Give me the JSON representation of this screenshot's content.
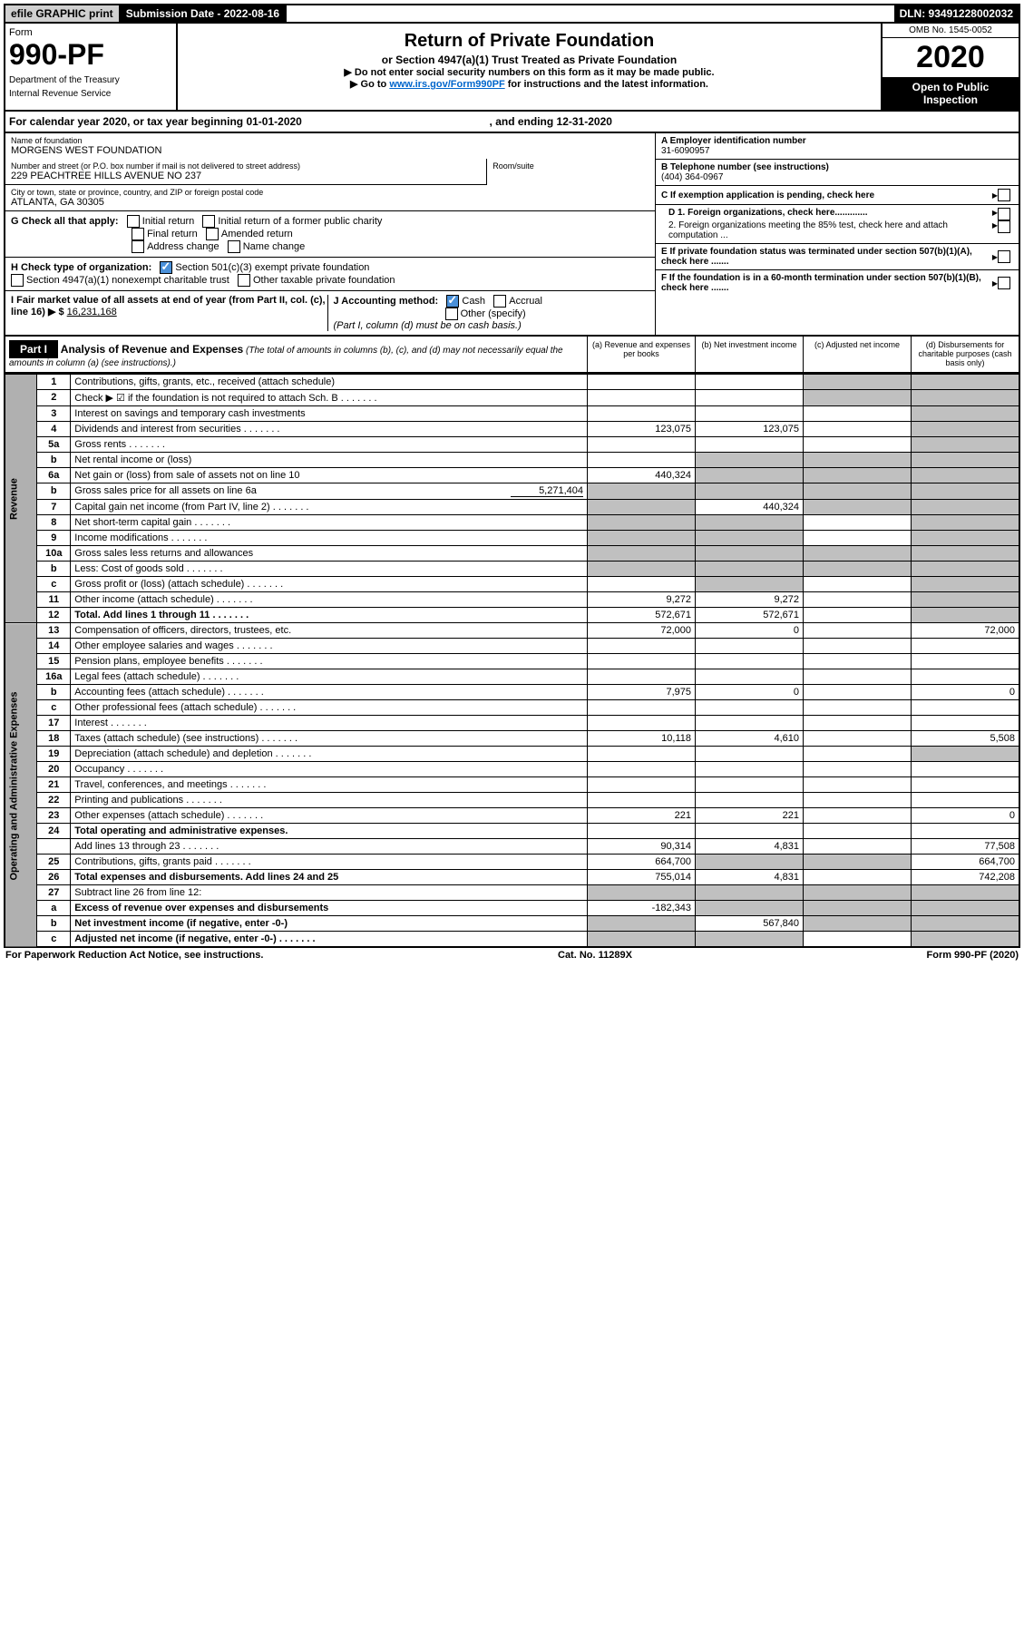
{
  "header": {
    "efile": "efile GRAPHIC print",
    "submission": "Submission Date - 2022-08-16",
    "dln": "DLN: 93491228002032"
  },
  "form": {
    "form_word": "Form",
    "number": "990-PF",
    "dept1": "Department of the Treasury",
    "dept2": "Internal Revenue Service",
    "title": "Return of Private Foundation",
    "subtitle": "or Section 4947(a)(1) Trust Treated as Private Foundation",
    "instr1": "▶ Do not enter social security numbers on this form as it may be made public.",
    "instr2_pre": "▶ Go to ",
    "instr2_link": "www.irs.gov/Form990PF",
    "instr2_post": " for instructions and the latest information.",
    "omb": "OMB No. 1545-0052",
    "year": "2020",
    "inspect": "Open to Public Inspection"
  },
  "calendar": {
    "text_pre": "For calendar year 2020, or tax year beginning ",
    "begin": "01-01-2020",
    "text_mid": " , and ending ",
    "end": "12-31-2020"
  },
  "entity": {
    "name_label": "Name of foundation",
    "name": "MORGENS WEST FOUNDATION",
    "street_label": "Number and street (or P.O. box number if mail is not delivered to street address)",
    "street": "229 PEACHTREE HILLS AVENUE NO 237",
    "room_label": "Room/suite",
    "city_label": "City or town, state or province, country, and ZIP or foreign postal code",
    "city": "ATLANTA, GA  30305",
    "ein_label": "A Employer identification number",
    "ein": "31-6090957",
    "phone_label": "B Telephone number (see instructions)",
    "phone": "(404) 364-0967",
    "c_label": "C If exemption application is pending, check here",
    "d1": "D 1. Foreign organizations, check here.............",
    "d2": "2. Foreign organizations meeting the 85% test, check here and attach computation ...",
    "e_label": "E  If private foundation status was terminated under section 507(b)(1)(A), check here .......",
    "f_label": "F  If the foundation is in a 60-month termination under section 507(b)(1)(B), check here .......",
    "g_label": "G Check all that apply:",
    "g_initial": "Initial return",
    "g_initial_former": "Initial return of a former public charity",
    "g_final": "Final return",
    "g_amended": "Amended return",
    "g_address": "Address change",
    "g_name": "Name change",
    "h_label": "H Check type of organization:",
    "h_501c3": "Section 501(c)(3) exempt private foundation",
    "h_4947": "Section 4947(a)(1) nonexempt charitable trust",
    "h_other": "Other taxable private foundation",
    "i_label": "I Fair market value of all assets at end of year (from Part II, col. (c), line 16) ▶ $",
    "i_value": "16,231,168",
    "j_label": "J Accounting method:",
    "j_cash": "Cash",
    "j_accrual": "Accrual",
    "j_other": "Other (specify)",
    "j_note": "(Part I, column (d) must be on cash basis.)"
  },
  "part1": {
    "label": "Part I",
    "title": "Analysis of Revenue and Expenses",
    "title_note": "(The total of amounts in columns (b), (c), and (d) may not necessarily equal the amounts in column (a) (see instructions).)",
    "col_a": "(a)   Revenue and expenses per books",
    "col_b": "(b)   Net investment income",
    "col_c": "(c)   Adjusted net income",
    "col_d": "(d)   Disbursements for charitable purposes (cash basis only)"
  },
  "sections": {
    "revenue": "Revenue",
    "expenses": "Operating and Administrative Expenses"
  },
  "rows": [
    {
      "n": "1",
      "d": "Contributions, gifts, grants, etc., received (attach schedule)",
      "a": "",
      "b": "",
      "c": "s",
      "dd": "s"
    },
    {
      "n": "2",
      "d": "Check ▶ ☑ if the foundation is not required to attach Sch. B",
      "a": "",
      "b": "",
      "c": "s",
      "dd": "s",
      "dots": true
    },
    {
      "n": "3",
      "d": "Interest on savings and temporary cash investments",
      "a": "",
      "b": "",
      "c": "",
      "dd": "s"
    },
    {
      "n": "4",
      "d": "Dividends and interest from securities",
      "a": "123,075",
      "b": "123,075",
      "c": "",
      "dd": "s",
      "dots": true
    },
    {
      "n": "5a",
      "d": "Gross rents",
      "a": "",
      "b": "",
      "c": "",
      "dd": "s",
      "dots": true
    },
    {
      "n": "b",
      "d": "Net rental income or (loss)",
      "a": "",
      "b": "s",
      "c": "s",
      "dd": "s",
      "under": true
    },
    {
      "n": "6a",
      "d": "Net gain or (loss) from sale of assets not on line 10",
      "a": "440,324",
      "b": "s",
      "c": "s",
      "dd": "s"
    },
    {
      "n": "b",
      "d": "Gross sales price for all assets on line 6a",
      "a": "s",
      "b": "s",
      "c": "s",
      "dd": "s",
      "inline": "5,271,404"
    },
    {
      "n": "7",
      "d": "Capital gain net income (from Part IV, line 2)",
      "a": "s",
      "b": "440,324",
      "c": "s",
      "dd": "s",
      "dots": true
    },
    {
      "n": "8",
      "d": "Net short-term capital gain",
      "a": "s",
      "b": "s",
      "c": "",
      "dd": "s",
      "dots": true
    },
    {
      "n": "9",
      "d": "Income modifications",
      "a": "s",
      "b": "s",
      "c": "",
      "dd": "s",
      "dots": true
    },
    {
      "n": "10a",
      "d": "Gross sales less returns and allowances",
      "a": "s",
      "b": "s",
      "c": "s",
      "dd": "s",
      "under": true
    },
    {
      "n": "b",
      "d": "Less: Cost of goods sold",
      "a": "s",
      "b": "s",
      "c": "s",
      "dd": "s",
      "under": true,
      "dots": true
    },
    {
      "n": "c",
      "d": "Gross profit or (loss) (attach schedule)",
      "a": "",
      "b": "s",
      "c": "",
      "dd": "s",
      "dots": true
    },
    {
      "n": "11",
      "d": "Other income (attach schedule)",
      "a": "9,272",
      "b": "9,272",
      "c": "",
      "dd": "s",
      "dots": true
    },
    {
      "n": "12",
      "d": "Total. Add lines 1 through 11",
      "a": "572,671",
      "b": "572,671",
      "c": "",
      "dd": "s",
      "bold": true,
      "dots": true
    }
  ],
  "exp_rows": [
    {
      "n": "13",
      "d": "Compensation of officers, directors, trustees, etc.",
      "a": "72,000",
      "b": "0",
      "c": "",
      "dd": "72,000"
    },
    {
      "n": "14",
      "d": "Other employee salaries and wages",
      "a": "",
      "b": "",
      "c": "",
      "dd": "",
      "dots": true
    },
    {
      "n": "15",
      "d": "Pension plans, employee benefits",
      "a": "",
      "b": "",
      "c": "",
      "dd": "",
      "dots": true
    },
    {
      "n": "16a",
      "d": "Legal fees (attach schedule)",
      "a": "",
      "b": "",
      "c": "",
      "dd": "",
      "dots": true
    },
    {
      "n": "b",
      "d": "Accounting fees (attach schedule)",
      "a": "7,975",
      "b": "0",
      "c": "",
      "dd": "0",
      "dots": true
    },
    {
      "n": "c",
      "d": "Other professional fees (attach schedule)",
      "a": "",
      "b": "",
      "c": "",
      "dd": "",
      "dots": true
    },
    {
      "n": "17",
      "d": "Interest",
      "a": "",
      "b": "",
      "c": "",
      "dd": "",
      "dots": true
    },
    {
      "n": "18",
      "d": "Taxes (attach schedule) (see instructions)",
      "a": "10,118",
      "b": "4,610",
      "c": "",
      "dd": "5,508",
      "dots": true
    },
    {
      "n": "19",
      "d": "Depreciation (attach schedule) and depletion",
      "a": "",
      "b": "",
      "c": "",
      "dd": "s",
      "dots": true
    },
    {
      "n": "20",
      "d": "Occupancy",
      "a": "",
      "b": "",
      "c": "",
      "dd": "",
      "dots": true
    },
    {
      "n": "21",
      "d": "Travel, conferences, and meetings",
      "a": "",
      "b": "",
      "c": "",
      "dd": "",
      "dots": true
    },
    {
      "n": "22",
      "d": "Printing and publications",
      "a": "",
      "b": "",
      "c": "",
      "dd": "",
      "dots": true
    },
    {
      "n": "23",
      "d": "Other expenses (attach schedule)",
      "a": "221",
      "b": "221",
      "c": "",
      "dd": "0",
      "dots": true
    },
    {
      "n": "24",
      "d": "Total operating and administrative expenses.",
      "a": "",
      "b": "",
      "c": "",
      "dd": "",
      "bold": true
    },
    {
      "n": "",
      "d": "Add lines 13 through 23",
      "a": "90,314",
      "b": "4,831",
      "c": "",
      "dd": "77,508",
      "dots": true
    },
    {
      "n": "25",
      "d": "Contributions, gifts, grants paid",
      "a": "664,700",
      "b": "s",
      "c": "s",
      "dd": "664,700",
      "dots": true
    },
    {
      "n": "26",
      "d": "Total expenses and disbursements. Add lines 24 and 25",
      "a": "755,014",
      "b": "4,831",
      "c": "",
      "dd": "742,208",
      "bold": true
    },
    {
      "n": "27",
      "d": "Subtract line 26 from line 12:",
      "a": "s",
      "b": "s",
      "c": "s",
      "dd": "s"
    },
    {
      "n": "a",
      "d": "Excess of revenue over expenses and disbursements",
      "a": "-182,343",
      "b": "s",
      "c": "s",
      "dd": "s",
      "bold": true
    },
    {
      "n": "b",
      "d": "Net investment income (if negative, enter -0-)",
      "a": "s",
      "b": "567,840",
      "c": "s",
      "dd": "s",
      "bold": true
    },
    {
      "n": "c",
      "d": "Adjusted net income (if negative, enter -0-)",
      "a": "s",
      "b": "s",
      "c": "",
      "dd": "s",
      "bold": true,
      "dots": true
    }
  ],
  "footer": {
    "left": "For Paperwork Reduction Act Notice, see instructions.",
    "center": "Cat. No. 11289X",
    "right": "Form 990-PF (2020)"
  }
}
